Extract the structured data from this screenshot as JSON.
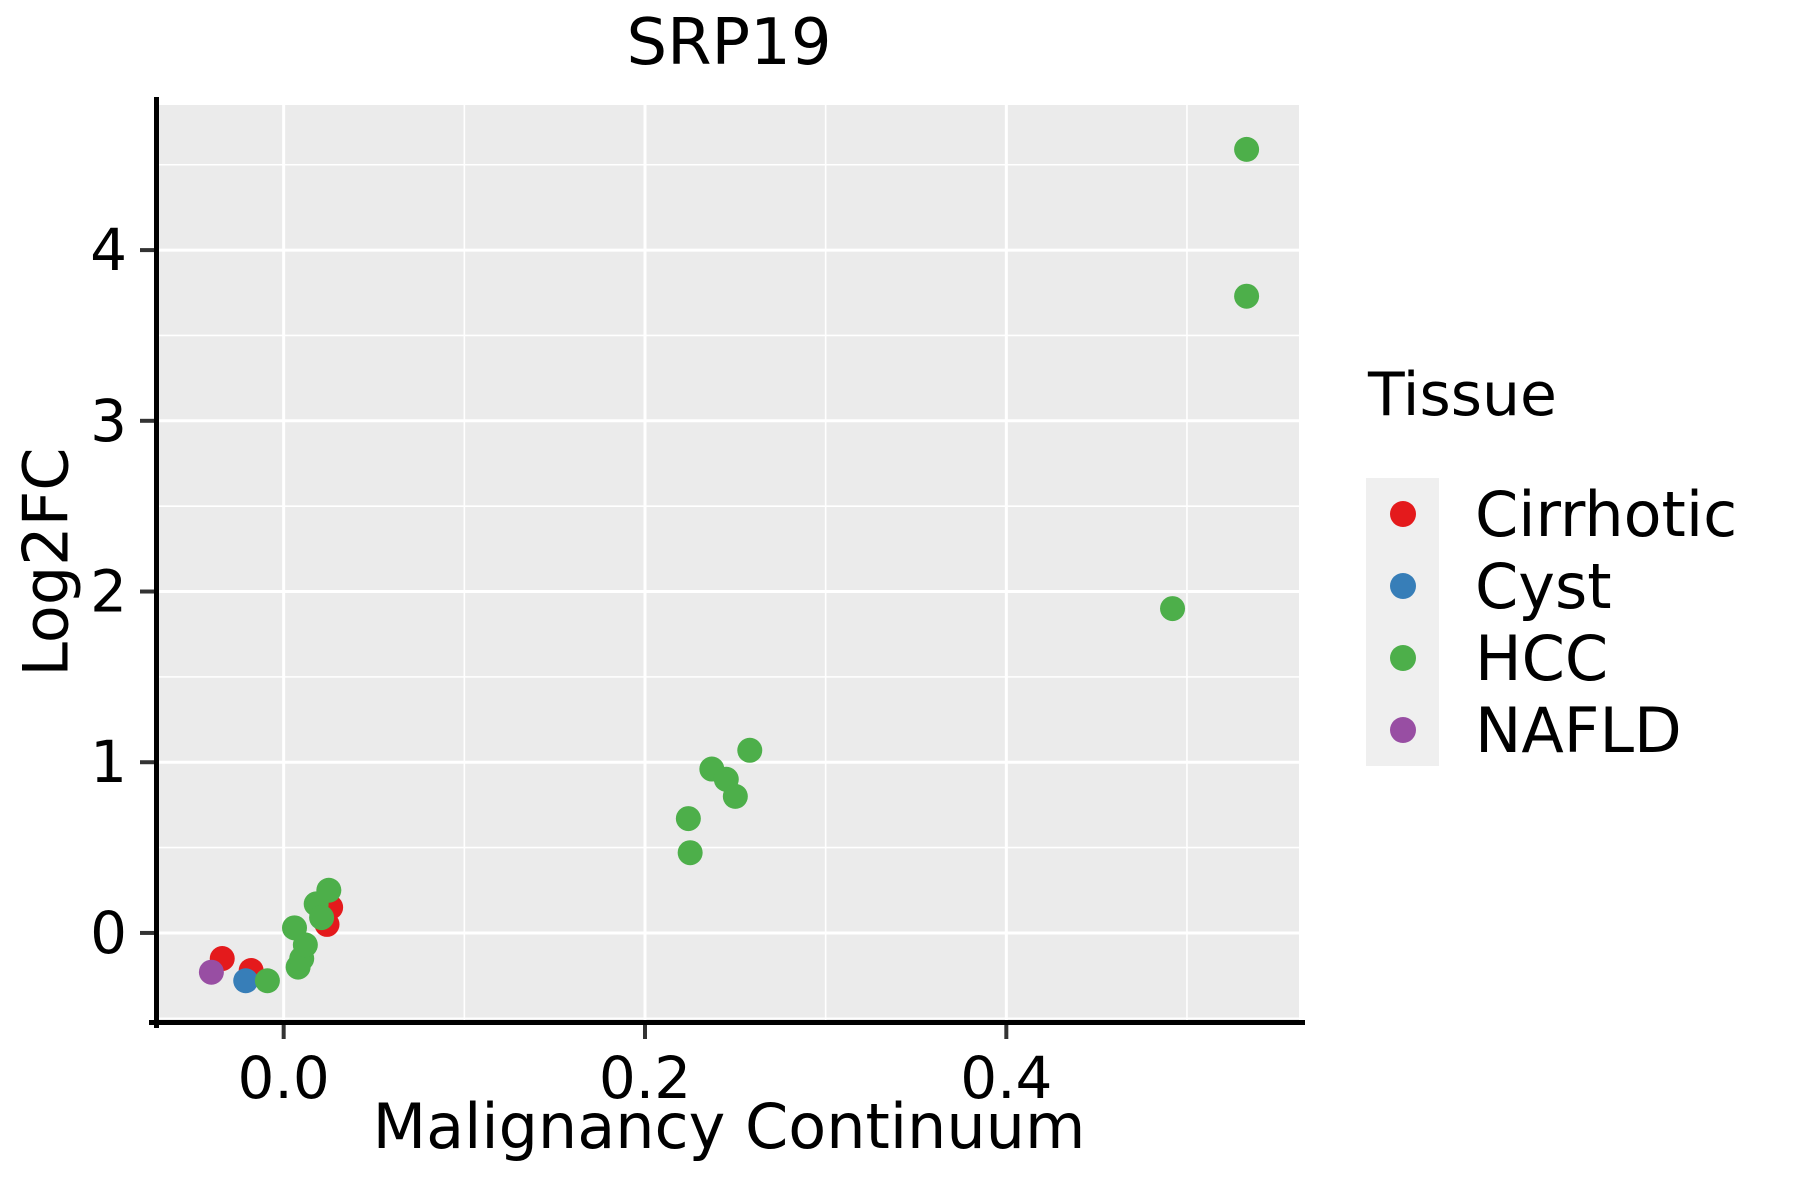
{
  "title": "SRP19",
  "chart_data": {
    "type": "scatter",
    "title": "SRP19",
    "xlabel": "Malignancy Continuum",
    "ylabel": "Log2FC",
    "xlim": [
      -0.069,
      0.562
    ],
    "ylim": [
      -0.51,
      4.85
    ],
    "x_ticks": {
      "values": [
        0.0,
        0.2,
        0.4
      ],
      "labels": [
        "0.0",
        "0.2",
        "0.4"
      ],
      "minor": [
        0.1,
        0.3,
        0.5
      ]
    },
    "y_ticks": {
      "values": [
        0,
        1,
        2,
        3,
        4
      ],
      "labels": [
        "0",
        "1",
        "2",
        "3",
        "4"
      ],
      "minor": [
        -0.5,
        0.5,
        1.5,
        2.5,
        3.5,
        4.5
      ]
    },
    "grid": "major and minor white gridlines on gray panel",
    "legend_position": "right",
    "point_radius_px": 12.5,
    "style": {
      "panel_bg": "#ebebeb",
      "grid_color": "#ffffff",
      "spine_color": "#000000",
      "tick_color": "#333333",
      "tick_label_color": "#000000",
      "tick_label_font_px": 58
    },
    "series": [
      {
        "name": "Cirrhotic",
        "color": "#e41a1c",
        "points": [
          [
            -0.034,
            -0.15
          ],
          [
            -0.018,
            -0.22
          ],
          [
            0.024,
            0.05
          ],
          [
            0.026,
            0.15
          ]
        ]
      },
      {
        "name": "Cyst",
        "color": "#377eb8",
        "points": [
          [
            -0.021,
            -0.28
          ]
        ]
      },
      {
        "name": "HCC",
        "color": "#4daf4a",
        "points": [
          [
            -0.009,
            -0.28
          ],
          [
            0.006,
            0.03
          ],
          [
            0.008,
            -0.2
          ],
          [
            0.01,
            -0.15
          ],
          [
            0.012,
            -0.07
          ],
          [
            0.018,
            0.17
          ],
          [
            0.021,
            0.09
          ],
          [
            0.025,
            0.25
          ],
          [
            0.224,
            0.67
          ],
          [
            0.225,
            0.47
          ],
          [
            0.237,
            0.96
          ],
          [
            0.245,
            0.9
          ],
          [
            0.25,
            0.8
          ],
          [
            0.258,
            1.07
          ],
          [
            0.492,
            1.9
          ],
          [
            0.533,
            3.73
          ],
          [
            0.533,
            4.59
          ]
        ]
      },
      {
        "name": "NAFLD",
        "color": "#984ea3",
        "points": [
          [
            -0.04,
            -0.23
          ]
        ]
      }
    ]
  },
  "legend": {
    "title": "Tissue",
    "items": [
      {
        "label": "Cirrhotic",
        "color": "#e41a1c"
      },
      {
        "label": "Cyst",
        "color": "#377eb8"
      },
      {
        "label": "HCC",
        "color": "#4daf4a"
      },
      {
        "label": "NAFLD",
        "color": "#984ea3"
      }
    ]
  }
}
